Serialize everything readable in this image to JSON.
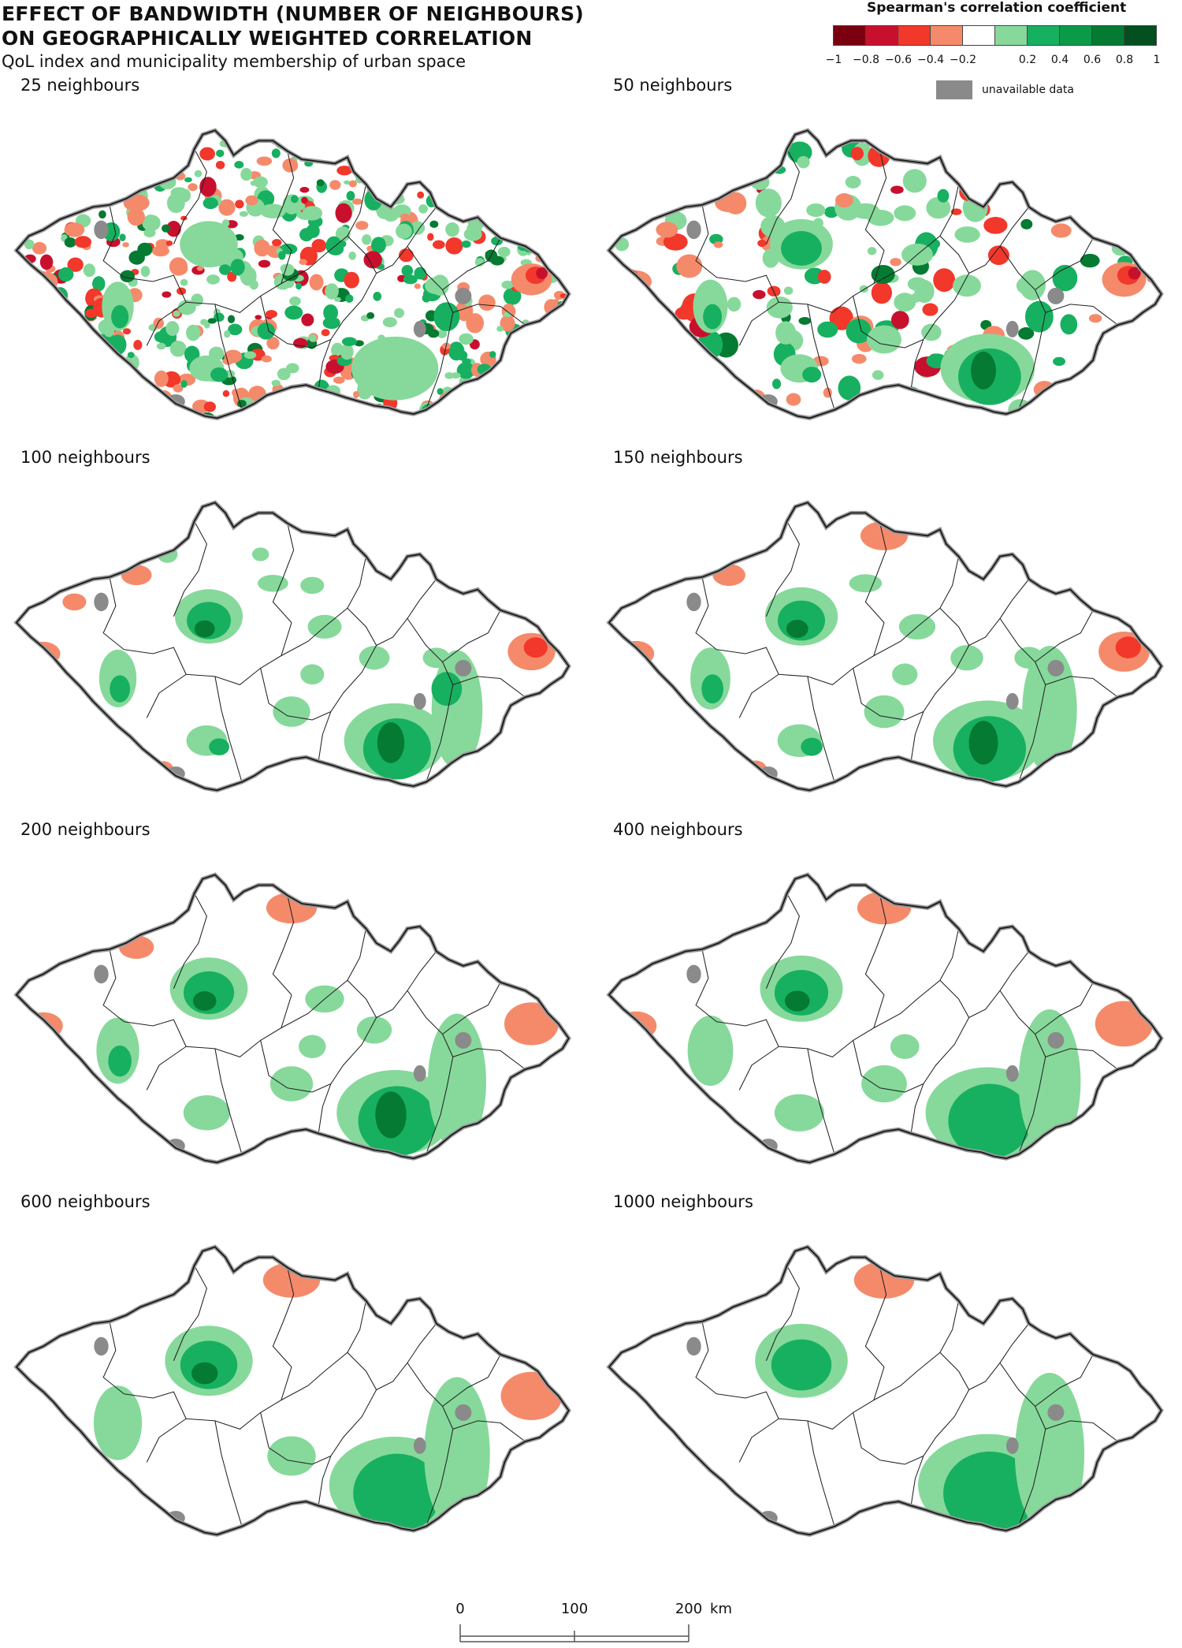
{
  "title_line1": "EFFECT OF BANDWIDTH (NUMBER OF NEIGHBOURS)",
  "title_line2": "ON GEOGRAPHICALLY WEIGHTED CORRELATION",
  "subtitle": "QoL index and municipality membership of urban space",
  "legend": {
    "title": "Spearman's correlation coefficient",
    "colors": [
      "#7a0010",
      "#c8102e",
      "#f2372b",
      "#f58a6b",
      "#ffffff",
      "#86d99b",
      "#17b060",
      "#0a9a48",
      "#057a32",
      "#034f1f"
    ],
    "ticks": [
      "−1",
      "−0.8",
      "−0.6",
      "−0.4",
      "−0.2",
      "0.2",
      "0.4",
      "0.6",
      "0.8",
      "1"
    ],
    "unavailable_label": "unavailable data",
    "unavailable_color": "#8a8a8a"
  },
  "panels": [
    {
      "label": "25 neighbours",
      "level": 0
    },
    {
      "label": "50 neighbours",
      "level": 1
    },
    {
      "label": "100 neighbours",
      "level": 2
    },
    {
      "label": "150 neighbours",
      "level": 3
    },
    {
      "label": "200 neighbours",
      "level": 4
    },
    {
      "label": "400 neighbours",
      "level": 5
    },
    {
      "label": "600 neighbours",
      "level": 6
    },
    {
      "label": "1000 neighbours",
      "level": 7
    }
  ],
  "scale": {
    "ticks": [
      "0",
      "100",
      "200"
    ],
    "unit": "km"
  }
}
